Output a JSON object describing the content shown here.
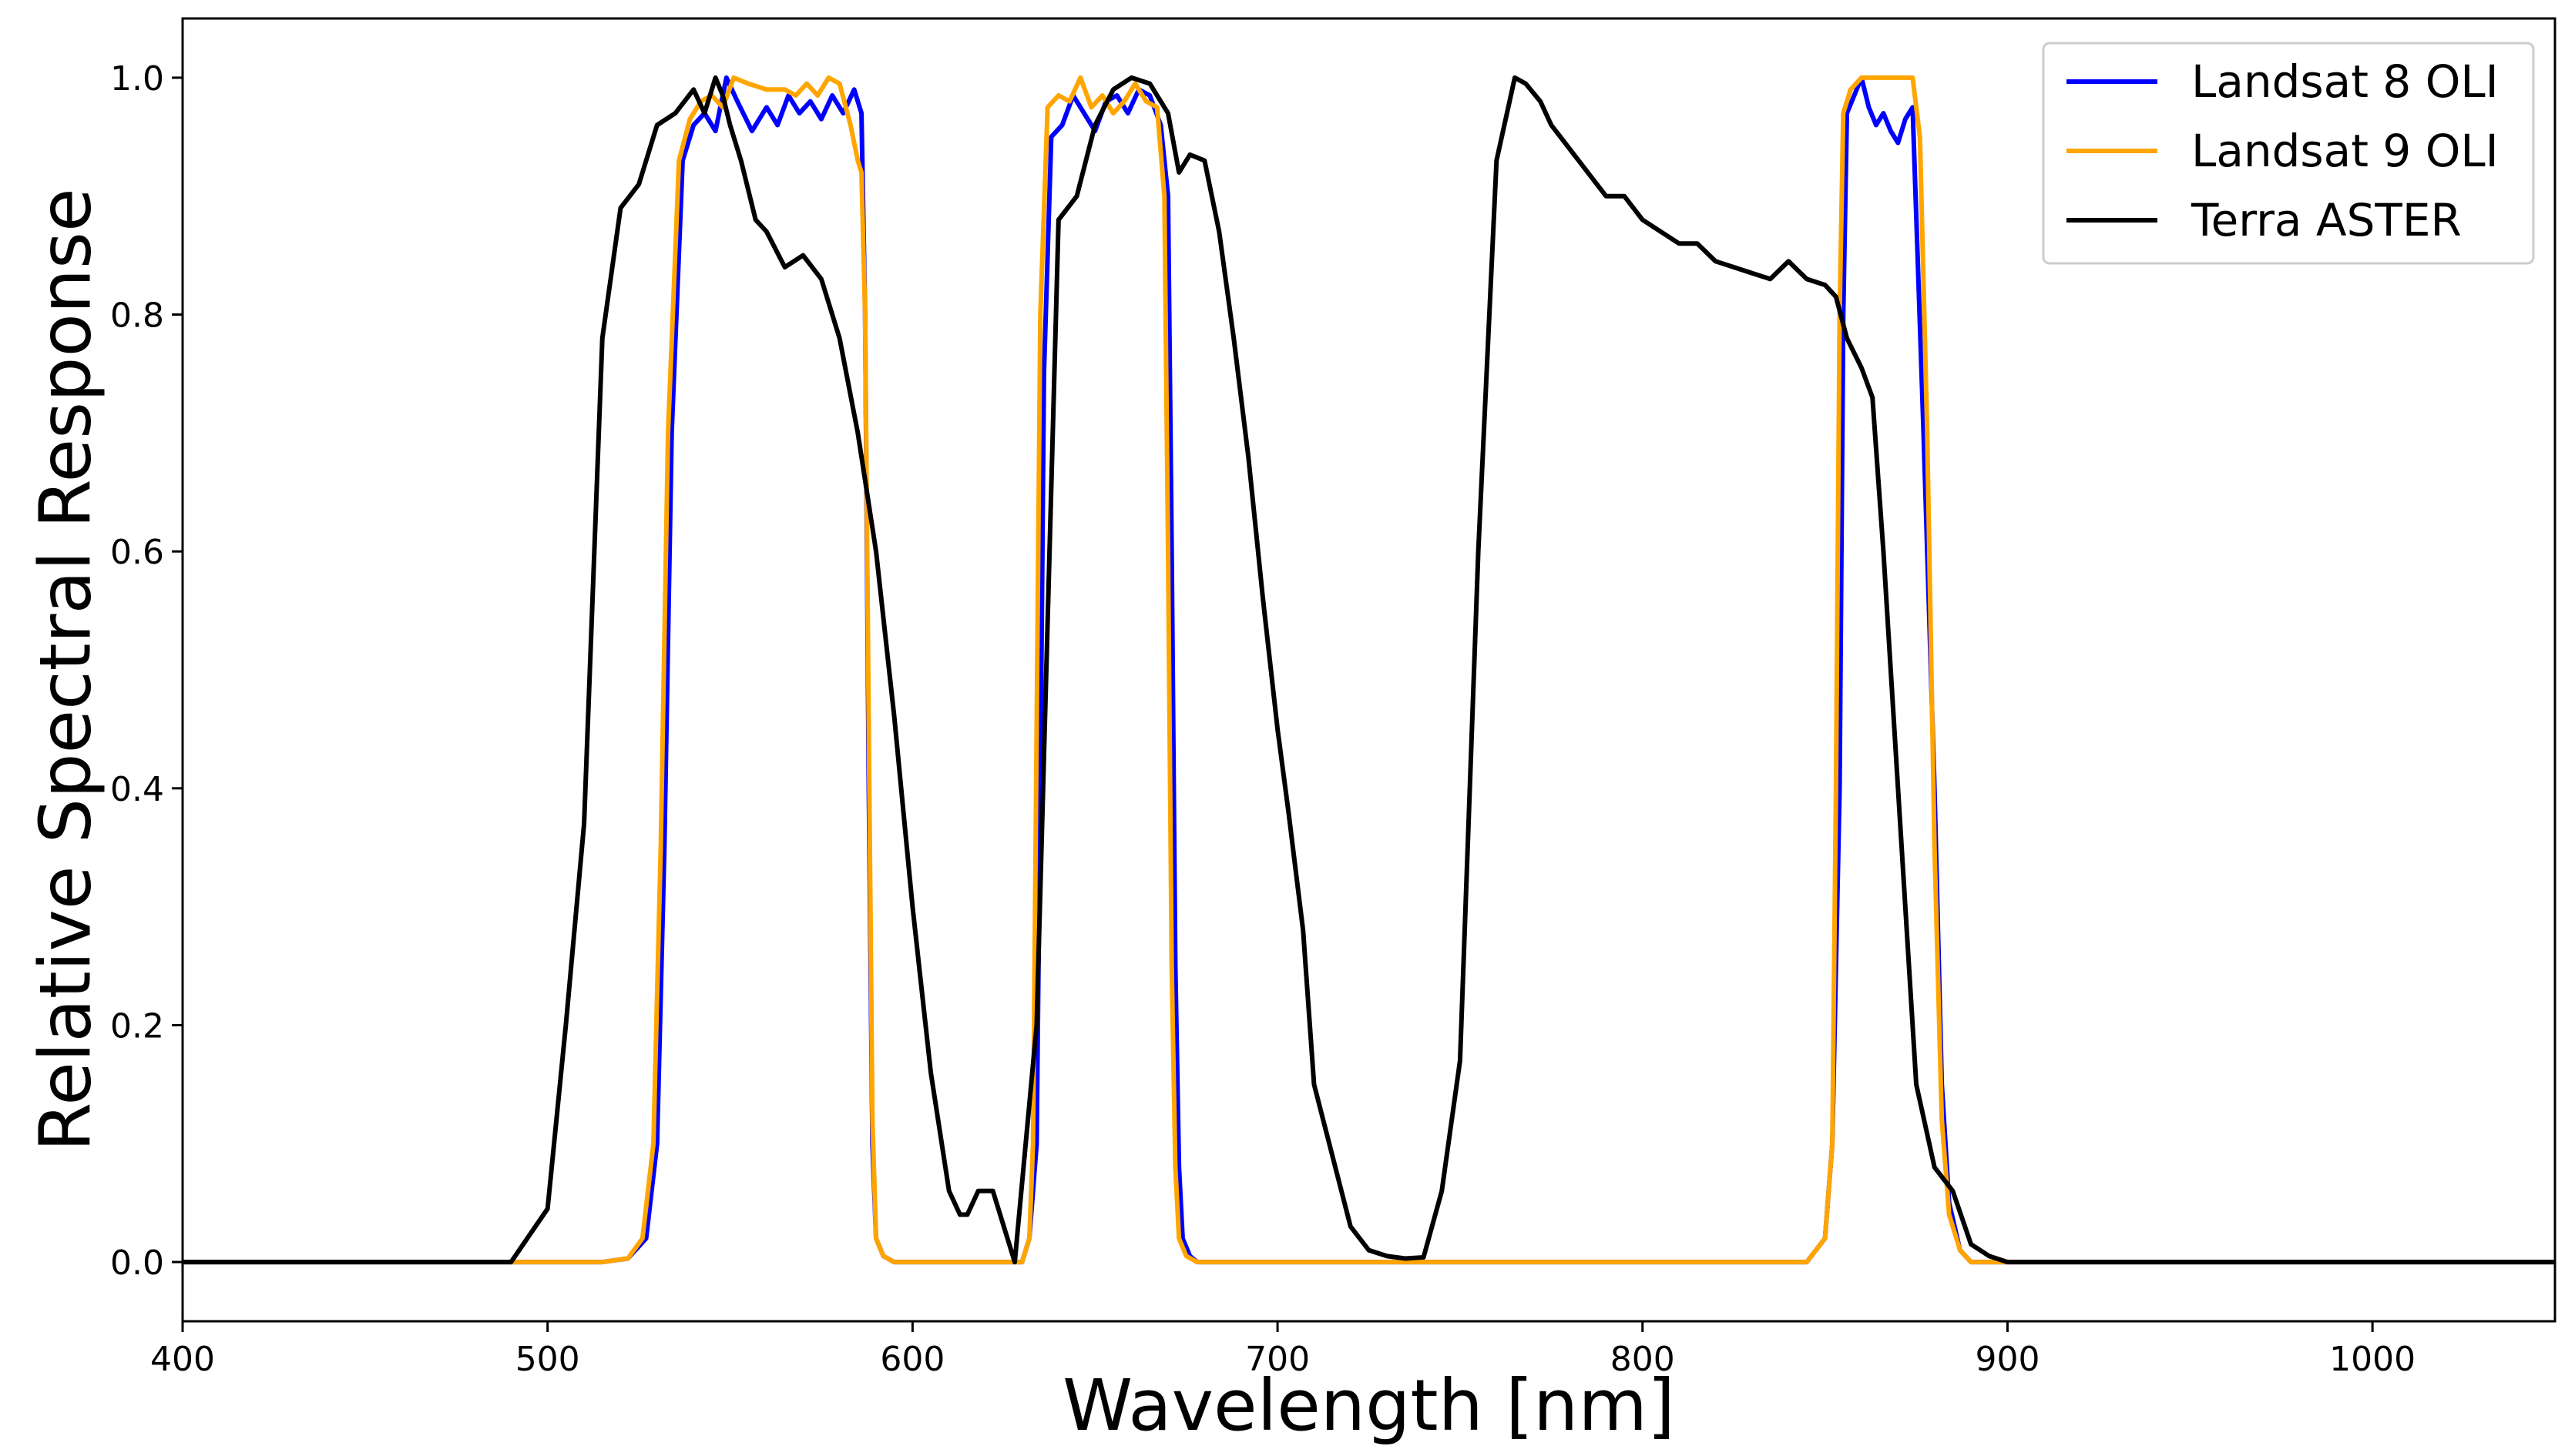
{
  "chart_data": {
    "type": "line",
    "title": "",
    "xlabel": "Wavelength [nm]",
    "ylabel": "Relative Spectral Response",
    "xlim": [
      400,
      1050
    ],
    "ylim": [
      -0.05,
      1.05
    ],
    "xticks": [
      400,
      500,
      600,
      700,
      800,
      900,
      1000
    ],
    "yticks": [
      0.0,
      0.2,
      0.4,
      0.6,
      0.8,
      1.0
    ],
    "xtick_labels": [
      "400",
      "500",
      "600",
      "700",
      "800",
      "900",
      "1000"
    ],
    "ytick_labels": [
      "0.0",
      "0.2",
      "0.4",
      "0.6",
      "0.8",
      "1.0"
    ],
    "grid": false,
    "legend_position": "top-right",
    "series": [
      {
        "name": "Landsat 8 OLI",
        "color": "#0000ff",
        "x": [
          400,
          515,
          522,
          527,
          530,
          532,
          534,
          537,
          540,
          543,
          546,
          549,
          552,
          556,
          560,
          563,
          566,
          569,
          572,
          575,
          578,
          581,
          584,
          586,
          587,
          588,
          589,
          590,
          592,
          595,
          598,
          630,
          632,
          634,
          635,
          636,
          638,
          641,
          644,
          647,
          650,
          653,
          656,
          659,
          662,
          665,
          668,
          670,
          671,
          672,
          673,
          674,
          676,
          678,
          682,
          845,
          850,
          852,
          854,
          855,
          856,
          858,
          860,
          862,
          864,
          866,
          868,
          870,
          872,
          874,
          877,
          880,
          882,
          884,
          887,
          890,
          1050
        ],
        "y": [
          0.0,
          0.0,
          0.003,
          0.02,
          0.1,
          0.35,
          0.7,
          0.93,
          0.96,
          0.97,
          0.955,
          1.0,
          0.98,
          0.955,
          0.975,
          0.96,
          0.985,
          0.97,
          0.98,
          0.965,
          0.985,
          0.97,
          0.99,
          0.97,
          0.8,
          0.4,
          0.1,
          0.02,
          0.005,
          0.0,
          0.0,
          0.0,
          0.02,
          0.1,
          0.4,
          0.75,
          0.95,
          0.96,
          0.985,
          0.97,
          0.955,
          0.98,
          0.985,
          0.97,
          0.99,
          0.985,
          0.96,
          0.9,
          0.6,
          0.25,
          0.08,
          0.02,
          0.005,
          0.0,
          0.0,
          0.0,
          0.02,
          0.1,
          0.4,
          0.8,
          0.97,
          0.985,
          1.0,
          0.975,
          0.96,
          0.97,
          0.955,
          0.945,
          0.965,
          0.975,
          0.7,
          0.4,
          0.15,
          0.05,
          0.01,
          0.0,
          0.0
        ]
      },
      {
        "name": "Landsat 9 OLI",
        "color": "#ffa500",
        "x": [
          400,
          515,
          522,
          526,
          529,
          531,
          533,
          536,
          539,
          542,
          545,
          548,
          551,
          555,
          560,
          565,
          568,
          571,
          574,
          577,
          580,
          583,
          585,
          586,
          587,
          588,
          589,
          590,
          592,
          595,
          598,
          630,
          632,
          633,
          634,
          635,
          637,
          640,
          643,
          646,
          649,
          652,
          655,
          658,
          661,
          664,
          667,
          669,
          670,
          671,
          672,
          673,
          675,
          678,
          682,
          845,
          850,
          852,
          853,
          854,
          855,
          857,
          860,
          864,
          868,
          872,
          874,
          876,
          878,
          880,
          882,
          884,
          887,
          890,
          1050
        ],
        "y": [
          0.0,
          0.0,
          0.003,
          0.02,
          0.1,
          0.35,
          0.7,
          0.93,
          0.965,
          0.98,
          0.985,
          0.975,
          1.0,
          0.995,
          0.99,
          0.99,
          0.985,
          0.995,
          0.985,
          1.0,
          0.995,
          0.96,
          0.93,
          0.92,
          0.8,
          0.45,
          0.12,
          0.02,
          0.005,
          0.0,
          0.0,
          0.0,
          0.02,
          0.1,
          0.45,
          0.8,
          0.975,
          0.985,
          0.98,
          1.0,
          0.975,
          0.985,
          0.97,
          0.98,
          0.995,
          0.98,
          0.975,
          0.9,
          0.6,
          0.25,
          0.08,
          0.02,
          0.005,
          0.0,
          0.0,
          0.0,
          0.02,
          0.1,
          0.4,
          0.8,
          0.97,
          0.99,
          1.0,
          1.0,
          1.0,
          1.0,
          1.0,
          0.95,
          0.7,
          0.35,
          0.12,
          0.04,
          0.01,
          0.0,
          0.0
        ]
      },
      {
        "name": "Terra ASTER",
        "color": "#000000",
        "x": [
          400,
          490,
          500,
          505,
          510,
          515,
          520,
          525,
          530,
          535,
          540,
          543,
          546,
          548,
          550,
          553,
          557,
          560,
          565,
          570,
          575,
          580,
          585,
          590,
          595,
          600,
          605,
          610,
          613,
          615,
          618,
          622,
          628,
          634,
          640,
          645,
          650,
          655,
          660,
          665,
          670,
          673,
          676,
          680,
          684,
          688,
          692,
          696,
          700,
          703,
          707,
          710,
          720,
          725,
          730,
          735,
          740,
          745,
          750,
          755,
          760,
          765,
          768,
          772,
          775,
          780,
          785,
          790,
          795,
          800,
          805,
          810,
          815,
          820,
          825,
          830,
          835,
          840,
          845,
          850,
          853,
          856,
          860,
          863,
          866,
          870,
          875,
          880,
          885,
          890,
          895,
          900,
          1050
        ],
        "y": [
          0.0,
          0.0,
          0.045,
          0.2,
          0.37,
          0.78,
          0.89,
          0.91,
          0.96,
          0.97,
          0.99,
          0.97,
          1.0,
          0.985,
          0.96,
          0.93,
          0.88,
          0.87,
          0.84,
          0.85,
          0.83,
          0.78,
          0.7,
          0.6,
          0.46,
          0.3,
          0.16,
          0.06,
          0.04,
          0.04,
          0.06,
          0.06,
          0.0,
          0.2,
          0.88,
          0.9,
          0.96,
          0.99,
          1.0,
          0.995,
          0.97,
          0.92,
          0.935,
          0.93,
          0.87,
          0.78,
          0.68,
          0.56,
          0.45,
          0.38,
          0.28,
          0.15,
          0.03,
          0.01,
          0.005,
          0.003,
          0.004,
          0.06,
          0.17,
          0.6,
          0.93,
          1.0,
          0.995,
          0.98,
          0.96,
          0.94,
          0.92,
          0.9,
          0.9,
          0.88,
          0.87,
          0.86,
          0.86,
          0.845,
          0.84,
          0.835,
          0.83,
          0.845,
          0.83,
          0.825,
          0.815,
          0.78,
          0.755,
          0.73,
          0.6,
          0.4,
          0.15,
          0.08,
          0.06,
          0.015,
          0.005,
          0.0,
          0.0
        ]
      }
    ]
  }
}
